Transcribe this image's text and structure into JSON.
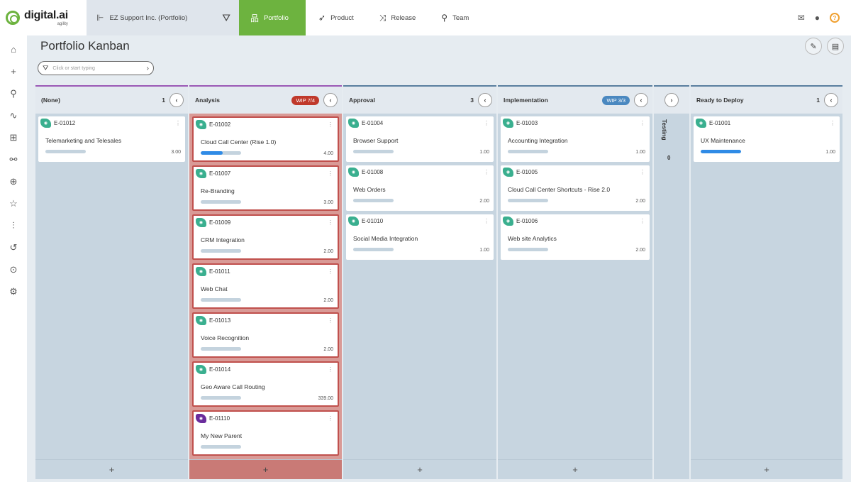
{
  "app": {
    "brand": "digital.ai",
    "brand_sub": "agility"
  },
  "context": {
    "label": "EZ Support Inc. (Portfolio)"
  },
  "nav": {
    "tabs": [
      {
        "label": "Portfolio",
        "icon": "hierarchy-icon",
        "active": true
      },
      {
        "label": "Product",
        "icon": "rocket-icon",
        "active": false
      },
      {
        "label": "Release",
        "icon": "shuffle-icon",
        "active": false
      },
      {
        "label": "Team",
        "icon": "person-icon",
        "active": false
      }
    ]
  },
  "page": {
    "title": "Portfolio Kanban"
  },
  "search": {
    "placeholder": "Click or start typing"
  },
  "columns": [
    {
      "title": "(None)",
      "count": "1",
      "wip": null,
      "accent": "#9b59b6",
      "cards": [
        {
          "id": "E-01012",
          "name": "Telemarketing and Telesales",
          "estimate": "3.00",
          "progress": 0,
          "badge_color": "#3aaf8f"
        }
      ]
    },
    {
      "title": "Analysis",
      "count": "",
      "wip": "WIP 7/4",
      "wip_color": "#c0392b",
      "accent": "#9b59b6",
      "cards": [
        {
          "id": "E-01002",
          "name": "Cloud Call Center (Rise 1.0)",
          "estimate": "4.00",
          "progress": 0.55,
          "badge_color": "#3aaf8f"
        },
        {
          "id": "E-01007",
          "name": "Re-Branding",
          "estimate": "3.00",
          "progress": 0,
          "badge_color": "#3aaf8f"
        },
        {
          "id": "E-01009",
          "name": "CRM Integration",
          "estimate": "2.00",
          "progress": 0,
          "badge_color": "#3aaf8f"
        },
        {
          "id": "E-01011",
          "name": "Web Chat",
          "estimate": "2.00",
          "progress": 0,
          "badge_color": "#3aaf8f"
        },
        {
          "id": "E-01013",
          "name": "Voice Recognition",
          "estimate": "2.00",
          "progress": 0,
          "badge_color": "#3aaf8f"
        },
        {
          "id": "E-01014",
          "name": "Geo Aware Call Routing",
          "estimate": "339.00",
          "progress": 0,
          "badge_color": "#3aaf8f"
        },
        {
          "id": "E-01110",
          "name": "My New Parent",
          "estimate": "",
          "progress": 0,
          "badge_color": "#6a2c9c"
        }
      ]
    },
    {
      "title": "Approval",
      "count": "3",
      "wip": null,
      "accent": "#5a7f9f",
      "cards": [
        {
          "id": "E-01004",
          "name": "Browser Support",
          "estimate": "1.00",
          "progress": 0,
          "badge_color": "#3aaf8f"
        },
        {
          "id": "E-01008",
          "name": "Web Orders",
          "estimate": "2.00",
          "progress": 0,
          "badge_color": "#3aaf8f"
        },
        {
          "id": "E-01010",
          "name": "Social Media Integration",
          "estimate": "1.00",
          "progress": 0,
          "badge_color": "#3aaf8f"
        }
      ]
    },
    {
      "title": "Implementation",
      "count": "",
      "wip": "WIP 3/3",
      "wip_color": "#4a88c0",
      "accent": "#5a7f9f",
      "cards": [
        {
          "id": "E-01003",
          "name": "Accounting Integration",
          "estimate": "1.00",
          "progress": 0,
          "badge_color": "#3aaf8f"
        },
        {
          "id": "E-01005",
          "name": "Cloud Call Center Shortcuts - Rise 2.0",
          "estimate": "2.00",
          "progress": 0,
          "badge_color": "#3aaf8f"
        },
        {
          "id": "E-01006",
          "name": "Web site Analytics",
          "estimate": "2.00",
          "progress": 0,
          "badge_color": "#3aaf8f"
        }
      ]
    },
    {
      "title": "Ready to Deploy",
      "count": "1",
      "wip": null,
      "accent": "#5a7f9f",
      "cards": [
        {
          "id": "E-01001",
          "name": "UX Maintenance",
          "estimate": "1.00",
          "progress": 1.0,
          "badge_color": "#3aaf8f"
        }
      ]
    }
  ],
  "testing": {
    "title": "Testing",
    "count": "0"
  },
  "add_symbol": "+"
}
